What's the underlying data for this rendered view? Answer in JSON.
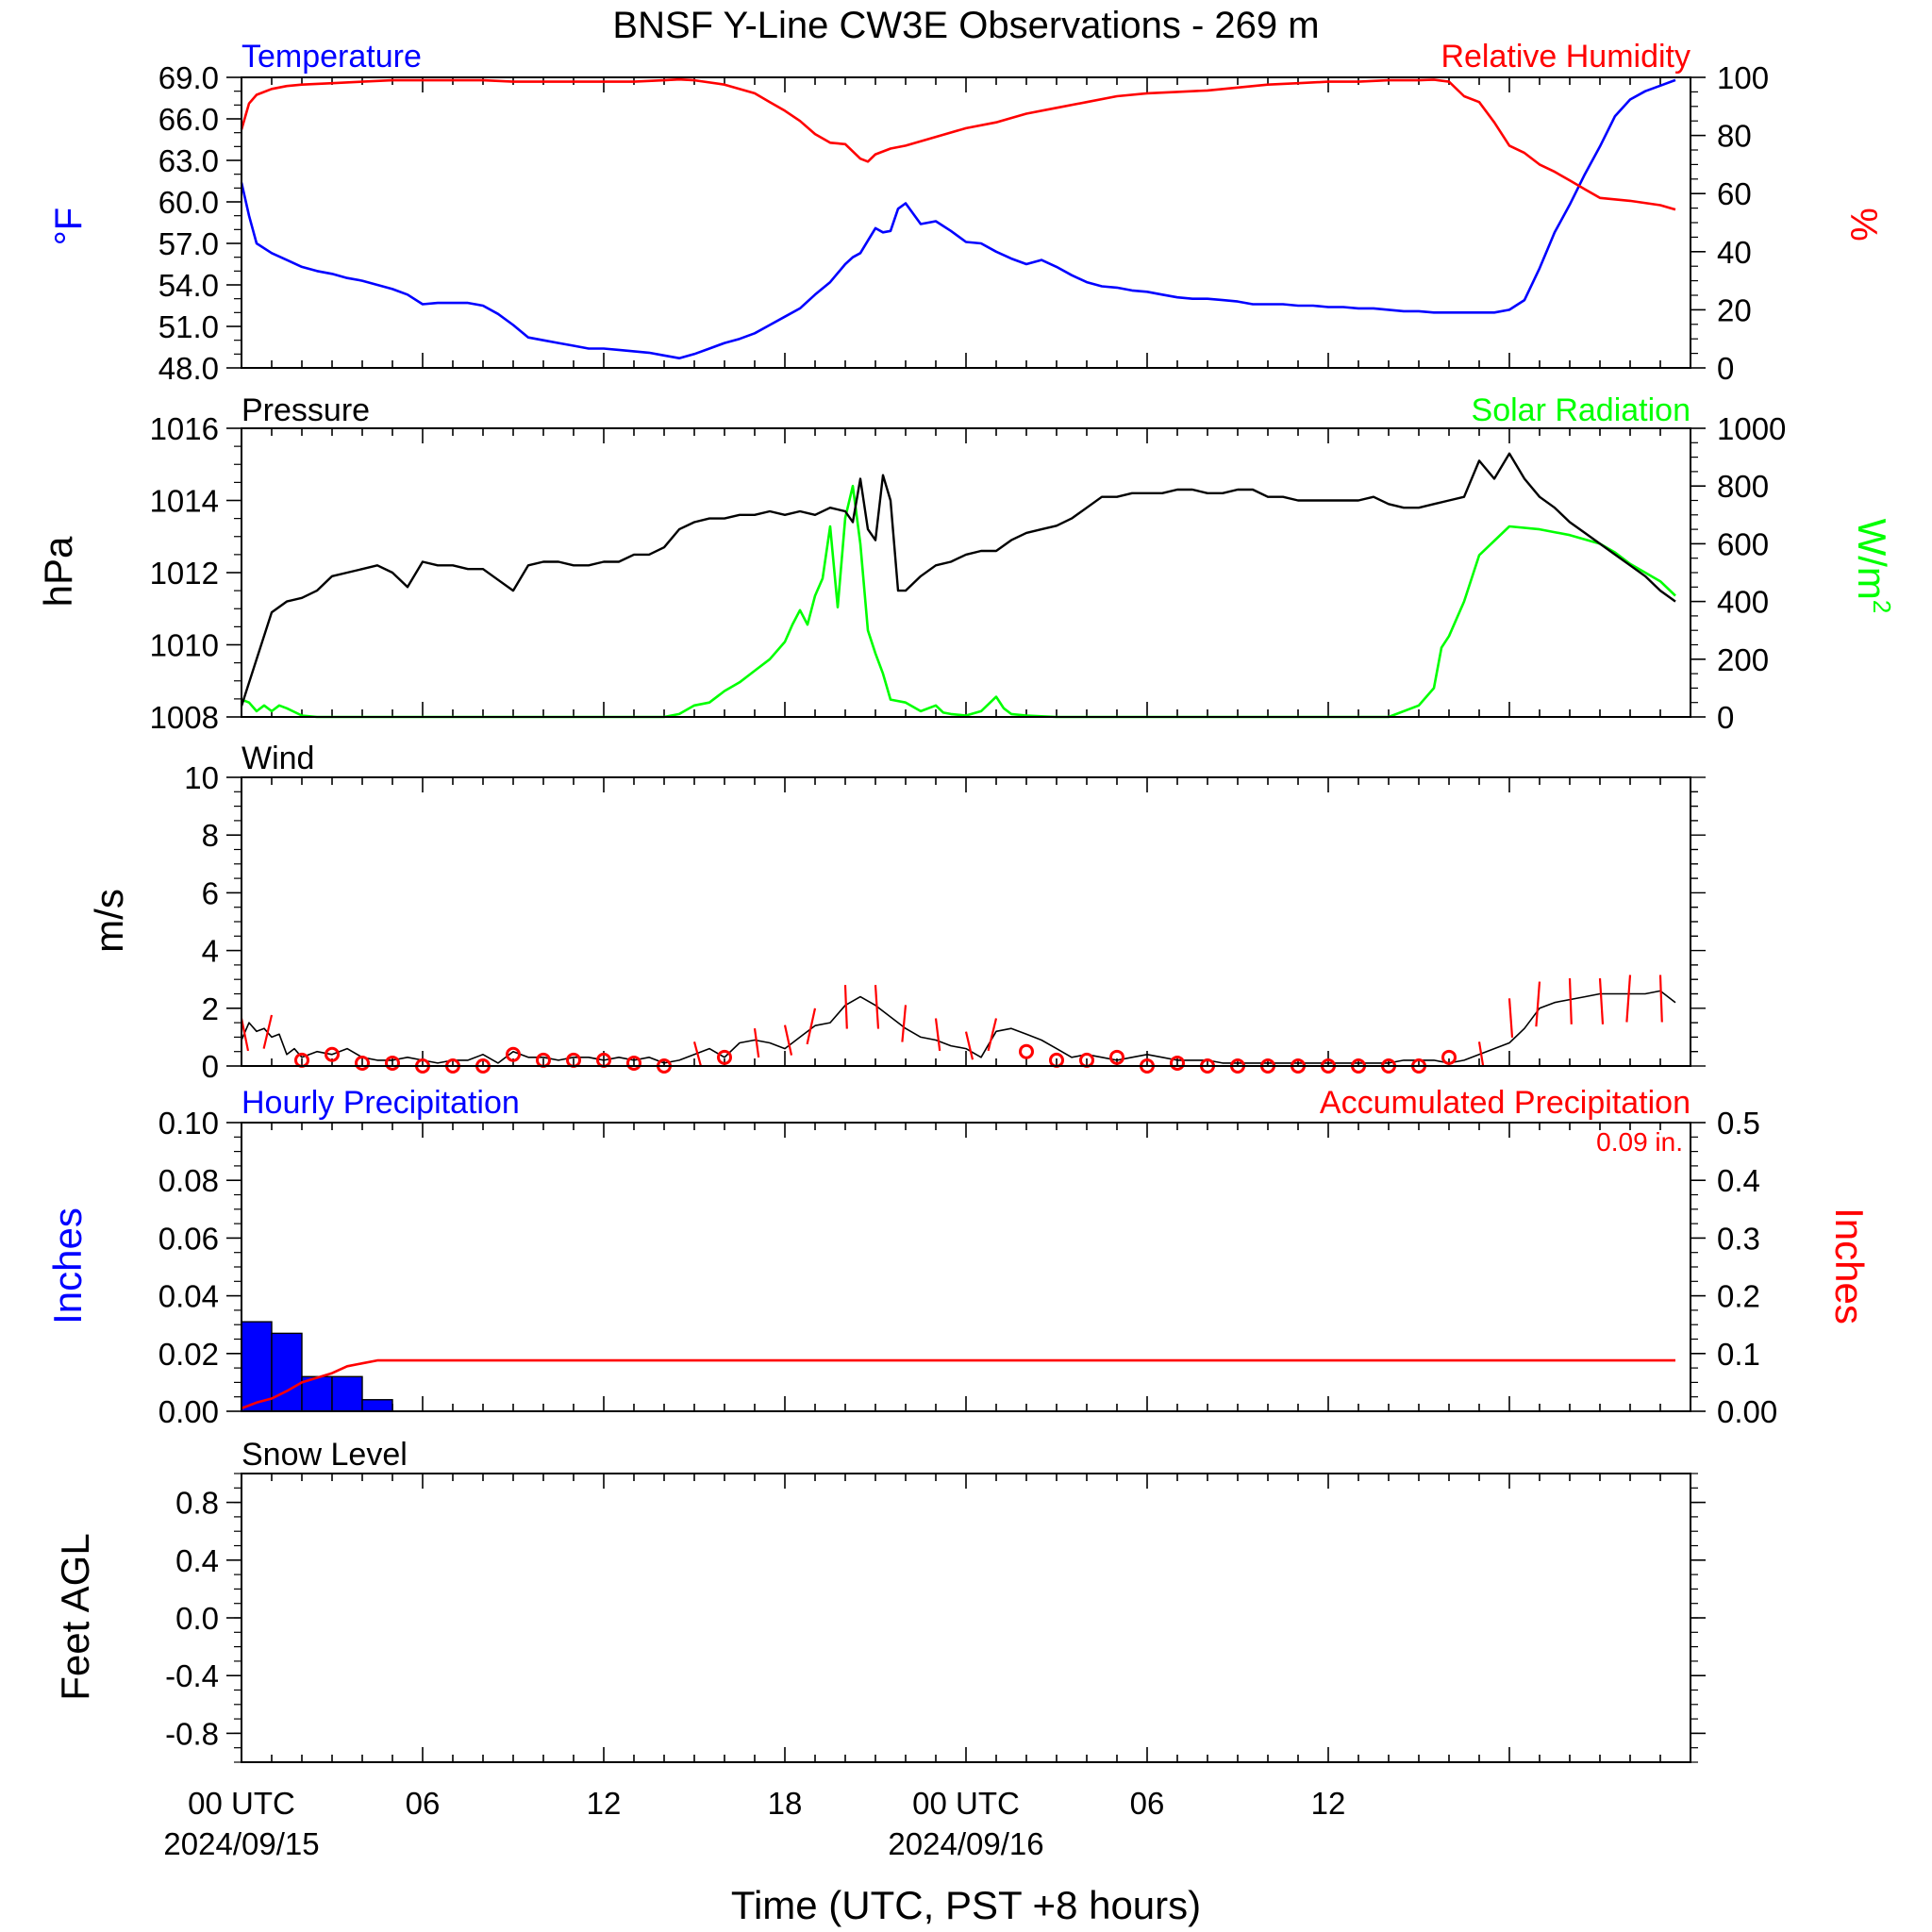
{
  "title": "BNSF Y-Line CW3E Observations - 269 m",
  "xaxis": {
    "label": "Time (UTC, PST +8 hours)",
    "range_hours": [
      0,
      48
    ],
    "ticks": [
      {
        "h": 0,
        "line1": "00 UTC",
        "line2": "2024/09/15"
      },
      {
        "h": 6,
        "line1": "06",
        "line2": ""
      },
      {
        "h": 12,
        "line1": "12",
        "line2": ""
      },
      {
        "h": 18,
        "line1": "18",
        "line2": ""
      },
      {
        "h": 24,
        "line1": "00 UTC",
        "line2": "2024/09/16"
      },
      {
        "h": 30,
        "line1": "06",
        "line2": ""
      },
      {
        "h": 36,
        "line1": "12",
        "line2": ""
      }
    ]
  },
  "colors": {
    "temperature": "#0000ff",
    "humidity": "#ff0000",
    "pressure": "#000000",
    "solar": "#00ff00",
    "wind": "#000000",
    "barb": "#ff0000",
    "hourly": "#0000ff",
    "accum": "#ff0000"
  },
  "panels": {
    "temp_rh": {
      "left_title": "Temperature",
      "right_title": "Relative Humidity",
      "left_unit": "°F",
      "right_unit": "%",
      "left_ticks": [
        "69.0",
        "66.0",
        "63.0",
        "60.0",
        "57.0",
        "54.0",
        "51.0",
        "48.0"
      ],
      "right_ticks": [
        "100",
        "80",
        "60",
        "40",
        "20",
        "0"
      ]
    },
    "pressure_solar": {
      "left_title": "Pressure",
      "right_title": "Solar Radiation",
      "left_unit": "hPa",
      "right_unit_base": "W/m",
      "right_unit_sup": "2",
      "left_ticks": [
        "1016",
        "1014",
        "1012",
        "1010",
        "1008"
      ],
      "right_ticks": [
        "1000",
        "800",
        "600",
        "400",
        "200",
        "0"
      ]
    },
    "wind": {
      "left_title": "Wind",
      "left_unit": "m/s",
      "left_ticks": [
        "10",
        "8",
        "6",
        "4",
        "2",
        "0"
      ]
    },
    "precip": {
      "left_title": "Hourly Precipitation",
      "right_title": "Accumulated Precipitation",
      "total": "0.09 in.",
      "left_unit": "Inches",
      "right_unit": "Inches",
      "left_ticks": [
        "0.10",
        "0.08",
        "0.06",
        "0.04",
        "0.02",
        "0.00"
      ],
      "right_ticks": [
        "0.5",
        "0.4",
        "0.3",
        "0.2",
        "0.1",
        "0.00"
      ]
    },
    "snow": {
      "left_title": "Snow Level",
      "left_unit": "Feet AGL",
      "left_ticks": [
        "0.8",
        "0.4",
        "0.0",
        "-0.4",
        "-0.8"
      ]
    }
  },
  "chart_data": [
    {
      "type": "line",
      "title": "Temperature",
      "ylabel": "°F",
      "ylim": [
        48,
        69
      ],
      "x_hours": [
        0,
        0.25,
        0.5,
        1,
        1.5,
        2,
        2.5,
        3,
        3.5,
        4,
        4.5,
        5,
        5.5,
        6,
        6.5,
        7,
        7.5,
        8,
        8.5,
        9,
        9.5,
        10,
        10.5,
        11,
        11.5,
        12,
        12.5,
        13,
        13.5,
        14,
        14.5,
        15,
        15.5,
        16,
        16.5,
        17,
        17.5,
        18,
        18.5,
        19,
        19.5,
        20,
        20.25,
        20.5,
        20.75,
        21,
        21.25,
        21.5,
        21.75,
        22,
        22.5,
        23,
        23.5,
        24,
        24.5,
        25,
        25.5,
        26,
        26.5,
        27,
        27.5,
        28,
        28.5,
        29,
        29.5,
        30,
        30.5,
        31,
        31.5,
        32,
        32.5,
        33,
        33.5,
        34,
        34.5,
        35,
        35.5,
        36,
        36.5,
        37,
        37.5,
        38,
        38.5,
        39,
        39.5,
        40,
        40.5,
        41,
        41.5,
        42,
        42.5,
        43,
        43.5,
        44,
        44.5,
        45,
        45.5,
        46,
        46.5,
        47,
        47.5
      ],
      "values": [
        61.4,
        59,
        57,
        56.3,
        55.8,
        55.3,
        55,
        54.8,
        54.5,
        54.3,
        54,
        53.7,
        53.3,
        52.6,
        52.7,
        52.7,
        52.7,
        52.5,
        51.9,
        51.1,
        50.2,
        50,
        49.8,
        49.6,
        49.4,
        49.4,
        49.3,
        49.2,
        49.1,
        48.9,
        48.7,
        49,
        49.4,
        49.8,
        50.1,
        50.5,
        51.1,
        51.7,
        52.3,
        53.3,
        54.2,
        55.5,
        56,
        56.3,
        57.2,
        58.1,
        57.8,
        57.9,
        59.5,
        59.9,
        58.4,
        58.6,
        57.9,
        57.1,
        57,
        56.4,
        55.9,
        55.5,
        55.8,
        55.3,
        54.7,
        54.2,
        53.9,
        53.8,
        53.6,
        53.5,
        53.3,
        53.1,
        53,
        53,
        52.9,
        52.8,
        52.6,
        52.6,
        52.6,
        52.5,
        52.5,
        52.4,
        52.4,
        52.3,
        52.3,
        52.2,
        52.1,
        52.1,
        52,
        52,
        52,
        52,
        52,
        52.2,
        52.9,
        55.2,
        57.8,
        59.8,
        62,
        64,
        66.2,
        67.4,
        68,
        68.4,
        68.8
      ]
    },
    {
      "type": "line",
      "title": "Relative Humidity",
      "ylabel": "%",
      "ylim": [
        0,
        100
      ],
      "x_hours": [
        0,
        0.25,
        0.5,
        1,
        1.5,
        2,
        3,
        4,
        5,
        6,
        7,
        8,
        9,
        10,
        11,
        12,
        13,
        14,
        14.5,
        15,
        16,
        17,
        17.5,
        18,
        18.5,
        19,
        19.5,
        20,
        20.5,
        20.75,
        21,
        21.5,
        22,
        22.5,
        23,
        24,
        25,
        26,
        27,
        28,
        29,
        30,
        31,
        32,
        33,
        34,
        35,
        36,
        37,
        38,
        39,
        39.5,
        40,
        40.5,
        41,
        41.5,
        42,
        42.5,
        43,
        43.5,
        44,
        44.5,
        45,
        46,
        47,
        47.5
      ],
      "values": [
        82,
        91,
        94,
        96,
        97,
        97.5,
        98,
        98.5,
        99,
        99,
        99,
        99,
        98.5,
        98.5,
        98.5,
        98.5,
        98.5,
        99,
        99.3,
        99,
        97.5,
        94.5,
        91.5,
        88.5,
        85,
        80.5,
        77.5,
        77,
        72,
        71,
        73.5,
        75.5,
        76.5,
        78,
        79.5,
        82.5,
        84.5,
        87.5,
        89.5,
        91.5,
        93.5,
        94.5,
        95,
        95.5,
        96.5,
        97.5,
        98,
        98.5,
        98.5,
        99,
        99,
        99.2,
        98.5,
        93.5,
        91.5,
        84.5,
        76.5,
        74,
        70,
        67.5,
        64.5,
        61.5,
        58.5,
        57.5,
        56,
        54.5
      ]
    },
    {
      "type": "line",
      "title": "Pressure",
      "ylabel": "hPa",
      "ylim": [
        1008,
        1016
      ],
      "x_hours": [
        0,
        0.5,
        1,
        1.5,
        2,
        2.5,
        3,
        3.5,
        4,
        4.5,
        5,
        5.5,
        6,
        6.5,
        7,
        7.5,
        8,
        8.5,
        9,
        9.5,
        10,
        10.5,
        11,
        11.5,
        12,
        12.5,
        13,
        13.5,
        14,
        14.5,
        15,
        15.5,
        16,
        16.5,
        17,
        17.5,
        18,
        18.5,
        19,
        19.5,
        20,
        20.25,
        20.5,
        20.75,
        21,
        21.25,
        21.5,
        21.75,
        22,
        22.5,
        23,
        23.5,
        24,
        24.5,
        25,
        25.5,
        26,
        26.5,
        27,
        27.5,
        28,
        28.5,
        29,
        29.5,
        30,
        30.5,
        31,
        31.5,
        32,
        32.5,
        33,
        33.5,
        34,
        34.5,
        35,
        35.5,
        36,
        36.5,
        37,
        37.5,
        38,
        38.5,
        39,
        39.5,
        40,
        40.5,
        41,
        41.5,
        42,
        42.5,
        43,
        43.5,
        44,
        44.5,
        45,
        45.5,
        46,
        46.5,
        47,
        47.5
      ],
      "values": [
        1008.3,
        1009.6,
        1010.9,
        1011.2,
        1011.3,
        1011.5,
        1011.9,
        1012,
        1012.1,
        1012.2,
        1012,
        1011.6,
        1012.3,
        1012.2,
        1012.2,
        1012.1,
        1012.1,
        1011.8,
        1011.5,
        1012.2,
        1012.3,
        1012.3,
        1012.2,
        1012.2,
        1012.3,
        1012.3,
        1012.5,
        1012.5,
        1012.7,
        1013.2,
        1013.4,
        1013.5,
        1013.5,
        1013.6,
        1013.6,
        1013.7,
        1013.6,
        1013.7,
        1013.6,
        1013.8,
        1013.7,
        1013.4,
        1014.6,
        1013.2,
        1012.9,
        1014.7,
        1014,
        1011.5,
        1011.5,
        1011.9,
        1012.2,
        1012.3,
        1012.5,
        1012.6,
        1012.6,
        1012.9,
        1013.1,
        1013.2,
        1013.3,
        1013.5,
        1013.8,
        1014.1,
        1014.1,
        1014.2,
        1014.2,
        1014.2,
        1014.3,
        1014.3,
        1014.2,
        1014.2,
        1014.3,
        1014.3,
        1014.1,
        1014.1,
        1014,
        1014,
        1014,
        1014,
        1014,
        1014.1,
        1013.9,
        1013.8,
        1013.8,
        1013.9,
        1014,
        1014.1,
        1015.1,
        1014.6,
        1015.3,
        1014.6,
        1014.1,
        1013.8,
        1013.4,
        1013.1,
        1012.8,
        1012.5,
        1012.2,
        1011.9,
        1011.5,
        1011.2
      ]
    },
    {
      "type": "line",
      "title": "Solar Radiation",
      "ylabel": "W/m2",
      "ylim": [
        0,
        1000
      ],
      "x_hours": [
        0,
        0.25,
        0.5,
        0.75,
        1,
        1.25,
        1.5,
        2,
        2.5,
        3,
        14,
        14.5,
        15,
        15.5,
        16,
        16.5,
        17,
        17.5,
        18,
        18.25,
        18.5,
        18.75,
        19,
        19.25,
        19.5,
        19.75,
        20,
        20.25,
        20.5,
        20.75,
        21,
        21.25,
        21.5,
        22,
        22.5,
        23,
        23.25,
        23.5,
        24,
        24.5,
        25,
        25.25,
        25.5,
        26,
        27,
        28,
        38,
        39,
        39.5,
        39.75,
        40,
        40.5,
        41,
        42,
        43,
        44,
        45,
        45.5,
        46,
        47,
        47.5
      ],
      "values": [
        60,
        50,
        20,
        40,
        20,
        40,
        30,
        5,
        0,
        0,
        0,
        10,
        40,
        50,
        90,
        120,
        160,
        200,
        260,
        320,
        370,
        320,
        420,
        480,
        660,
        380,
        690,
        800,
        600,
        300,
        220,
        150,
        60,
        50,
        20,
        40,
        15,
        10,
        5,
        20,
        70,
        30,
        10,
        5,
        0,
        0,
        0,
        40,
        100,
        240,
        280,
        400,
        560,
        660,
        650,
        630,
        600,
        570,
        530,
        470,
        420
      ]
    },
    {
      "type": "line",
      "title": "Wind",
      "ylabel": "m/s",
      "ylim": [
        0,
        10
      ],
      "x_hours": [
        0,
        0.25,
        0.5,
        0.75,
        1,
        1.25,
        1.5,
        1.75,
        2,
        2.5,
        3,
        3.5,
        4,
        4.5,
        5,
        5.5,
        6,
        6.5,
        7,
        7.5,
        8,
        8.5,
        9,
        9.5,
        10,
        10.5,
        11,
        11.5,
        12,
        12.5,
        13,
        13.5,
        14,
        14.5,
        15,
        15.5,
        16,
        16.5,
        17,
        17.5,
        18,
        18.5,
        19,
        19.5,
        20,
        20.5,
        21,
        21.5,
        22,
        22.5,
        23,
        23.5,
        24,
        24.5,
        25,
        25.5,
        26,
        26.5,
        27,
        27.5,
        28,
        28.5,
        29,
        29.5,
        30,
        30.5,
        31,
        31.5,
        32,
        32.5,
        33,
        33.5,
        34,
        34.5,
        35,
        35.5,
        36,
        36.5,
        37,
        37.5,
        38,
        38.5,
        39,
        39.5,
        40,
        40.5,
        41,
        41.5,
        42,
        42.5,
        43,
        43.5,
        44,
        44.5,
        45,
        45.5,
        46,
        46.5,
        47,
        47.5
      ],
      "values": [
        0.9,
        1.5,
        1.2,
        1.3,
        1,
        1.1,
        0.4,
        0.6,
        0.3,
        0.5,
        0.4,
        0.6,
        0.3,
        0.2,
        0.2,
        0.3,
        0.2,
        0.1,
        0.2,
        0.2,
        0.4,
        0.1,
        0.5,
        0.3,
        0.3,
        0.2,
        0.3,
        0.3,
        0.2,
        0.3,
        0.2,
        0.3,
        0.1,
        0.2,
        0.4,
        0.6,
        0.3,
        0.8,
        0.9,
        0.8,
        0.6,
        1,
        1.4,
        1.5,
        2.1,
        2.4,
        2.1,
        1.7,
        1.3,
        1.0,
        0.9,
        0.7,
        0.6,
        0.3,
        1.2,
        1.3,
        1.1,
        0.9,
        0.6,
        0.3,
        0.4,
        0.3,
        0.2,
        0.3,
        0.4,
        0.3,
        0.2,
        0.2,
        0.2,
        0.1,
        0.1,
        0.1,
        0.1,
        0.1,
        0.1,
        0.1,
        0.1,
        0.1,
        0.1,
        0.1,
        0.1,
        0.2,
        0.2,
        0.2,
        0.1,
        0.2,
        0.4,
        0.6,
        0.8,
        1.3,
        2.0,
        2.2,
        2.3,
        2.4,
        2.5,
        2.5,
        2.5,
        2.5,
        2.6,
        2.2
      ],
      "barb_hours": [
        0,
        1,
        2,
        3,
        4,
        5,
        6,
        7,
        8,
        9,
        10,
        11,
        12,
        13,
        14,
        15,
        16,
        17,
        18,
        19,
        20,
        21,
        22,
        23,
        24,
        25,
        26,
        27,
        28,
        29,
        30,
        31,
        32,
        33,
        34,
        35,
        36,
        37,
        38,
        39,
        40,
        41,
        42,
        43,
        44,
        45,
        46,
        47
      ],
      "barb_calm": [
        false,
        false,
        true,
        true,
        true,
        true,
        true,
        true,
        true,
        true,
        true,
        true,
        true,
        true,
        true,
        false,
        true,
        false,
        false,
        false,
        false,
        false,
        false,
        false,
        false,
        false,
        true,
        true,
        true,
        true,
        true,
        true,
        true,
        true,
        true,
        true,
        true,
        true,
        true,
        true,
        true,
        false,
        false,
        false,
        false,
        false,
        false,
        false
      ],
      "barb_speed": [
        1.2,
        1.3,
        0.2,
        0.4,
        0.1,
        0.1,
        0,
        0,
        0,
        0.4,
        0.2,
        0.2,
        0.2,
        0.1,
        0,
        0.5,
        0.3,
        0.9,
        1,
        1.5,
        2.2,
        2.2,
        1.6,
        1.2,
        0.8,
        1.2,
        0.5,
        0.2,
        0.2,
        0.3,
        0,
        0.1,
        0,
        0,
        0,
        0,
        0,
        0,
        0,
        0,
        0.3,
        0.5,
        1.8,
        2.3,
        2.4,
        2.4,
        2.5,
        2.5
      ]
    },
    {
      "type": "bar",
      "title": "Hourly Precipitation",
      "ylabel": "Inches",
      "ylim": [
        0,
        0.1
      ],
      "x_hours": [
        0,
        1,
        2,
        3,
        4
      ],
      "values": [
        0.031,
        0.027,
        0.012,
        0.012,
        0.004
      ]
    },
    {
      "type": "line",
      "title": "Accumulated Precipitation",
      "ylabel": "Inches",
      "ylim": [
        0,
        0.5
      ],
      "x_hours": [
        0,
        0.5,
        1,
        1.5,
        2,
        2.5,
        3,
        3.5,
        4,
        4.5,
        5,
        47.5
      ],
      "values": [
        0.005,
        0.015,
        0.022,
        0.035,
        0.05,
        0.058,
        0.066,
        0.078,
        0.083,
        0.088,
        0.088,
        0.088
      ]
    },
    {
      "type": "line",
      "title": "Snow Level",
      "ylabel": "Feet AGL",
      "ylim": [
        -1,
        1
      ],
      "values": []
    }
  ]
}
